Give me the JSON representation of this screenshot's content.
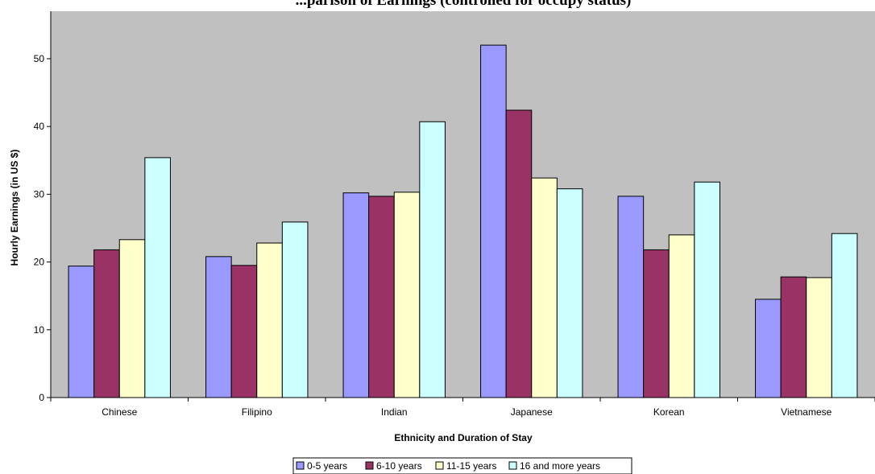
{
  "chart_data": {
    "type": "bar",
    "title": "...parison of Earnings (controlled for occupy status)",
    "xlabel": "Ethnicity and Duration of Stay",
    "ylabel": "Hourly Earnings (in US $)",
    "ylim": [
      0,
      57
    ],
    "yticks": [
      0,
      10,
      20,
      30,
      40,
      50
    ],
    "grid": false,
    "legend_position": "bottom",
    "categories": [
      "Chinese",
      "Filipino",
      "Indian",
      "Japanese",
      "Korean",
      "Vietnamese"
    ],
    "series": [
      {
        "name": "0-5 years",
        "color": "#9999ff",
        "values": [
          19.4,
          20.8,
          30.2,
          52.0,
          29.7,
          14.5
        ]
      },
      {
        "name": "6-10 years",
        "color": "#993366",
        "values": [
          21.8,
          19.5,
          29.7,
          42.4,
          21.8,
          17.8
        ]
      },
      {
        "name": "11-15 years",
        "color": "#ffffcc",
        "values": [
          23.3,
          22.8,
          30.3,
          32.4,
          24.0,
          17.7
        ]
      },
      {
        "name": "16 and more years",
        "color": "#ccffff",
        "values": [
          35.4,
          25.9,
          40.7,
          30.8,
          31.8,
          24.2
        ]
      }
    ]
  },
  "colors": {
    "plot_background": "#c0c0c0",
    "bar_outline": "#000000"
  }
}
